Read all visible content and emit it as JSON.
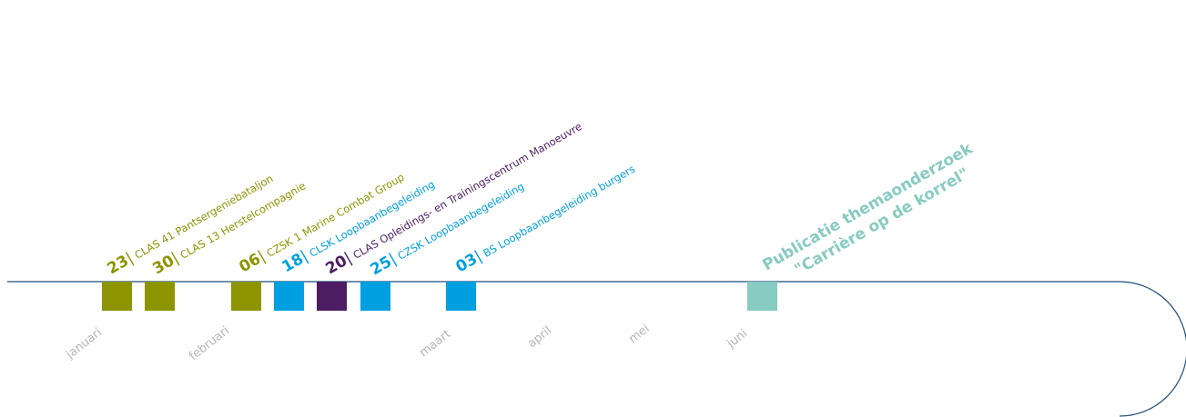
{
  "colors": {
    "line": "#1f4e79",
    "olive": "#8c9400",
    "blue": "#009fdf",
    "purple": "#4c1d63",
    "teal": "#87cbc2",
    "month": "#b4b4b4"
  },
  "months": [
    "januari",
    "februari",
    "maart",
    "april",
    "mei",
    "juni"
  ],
  "events": [
    {
      "day": "23",
      "sep": "|",
      "name": "CLAS  41 Pantsergeniebataljon",
      "color": "olive"
    },
    {
      "day": "30",
      "sep": "|",
      "name": "CLAS 13 Herstelcompagnie",
      "color": "olive"
    },
    {
      "day": "06",
      "sep": "|",
      "name": "CZSK  1 Marine Combat Group",
      "color": "olive"
    },
    {
      "day": "18",
      "sep": "|",
      "name": "CLSK Loopbaanbegeleiding",
      "color": "blue"
    },
    {
      "day": "20",
      "sep": "|",
      "name": "CLAS  Opleidings- en Trainingscentrum Manoeuvre",
      "color": "purple"
    },
    {
      "day": "25",
      "sep": "|",
      "name": "CZSK  Loopbaanbegeleiding",
      "color": "blue"
    },
    {
      "day": "03",
      "sep": "|",
      "name": "BS  Loopbaanbegeleiding burgers",
      "color": "blue"
    }
  ],
  "publication": {
    "line1": "Publicatie themaonderzoek",
    "line2": "\"Carrière op de korrel\"",
    "color": "teal"
  }
}
